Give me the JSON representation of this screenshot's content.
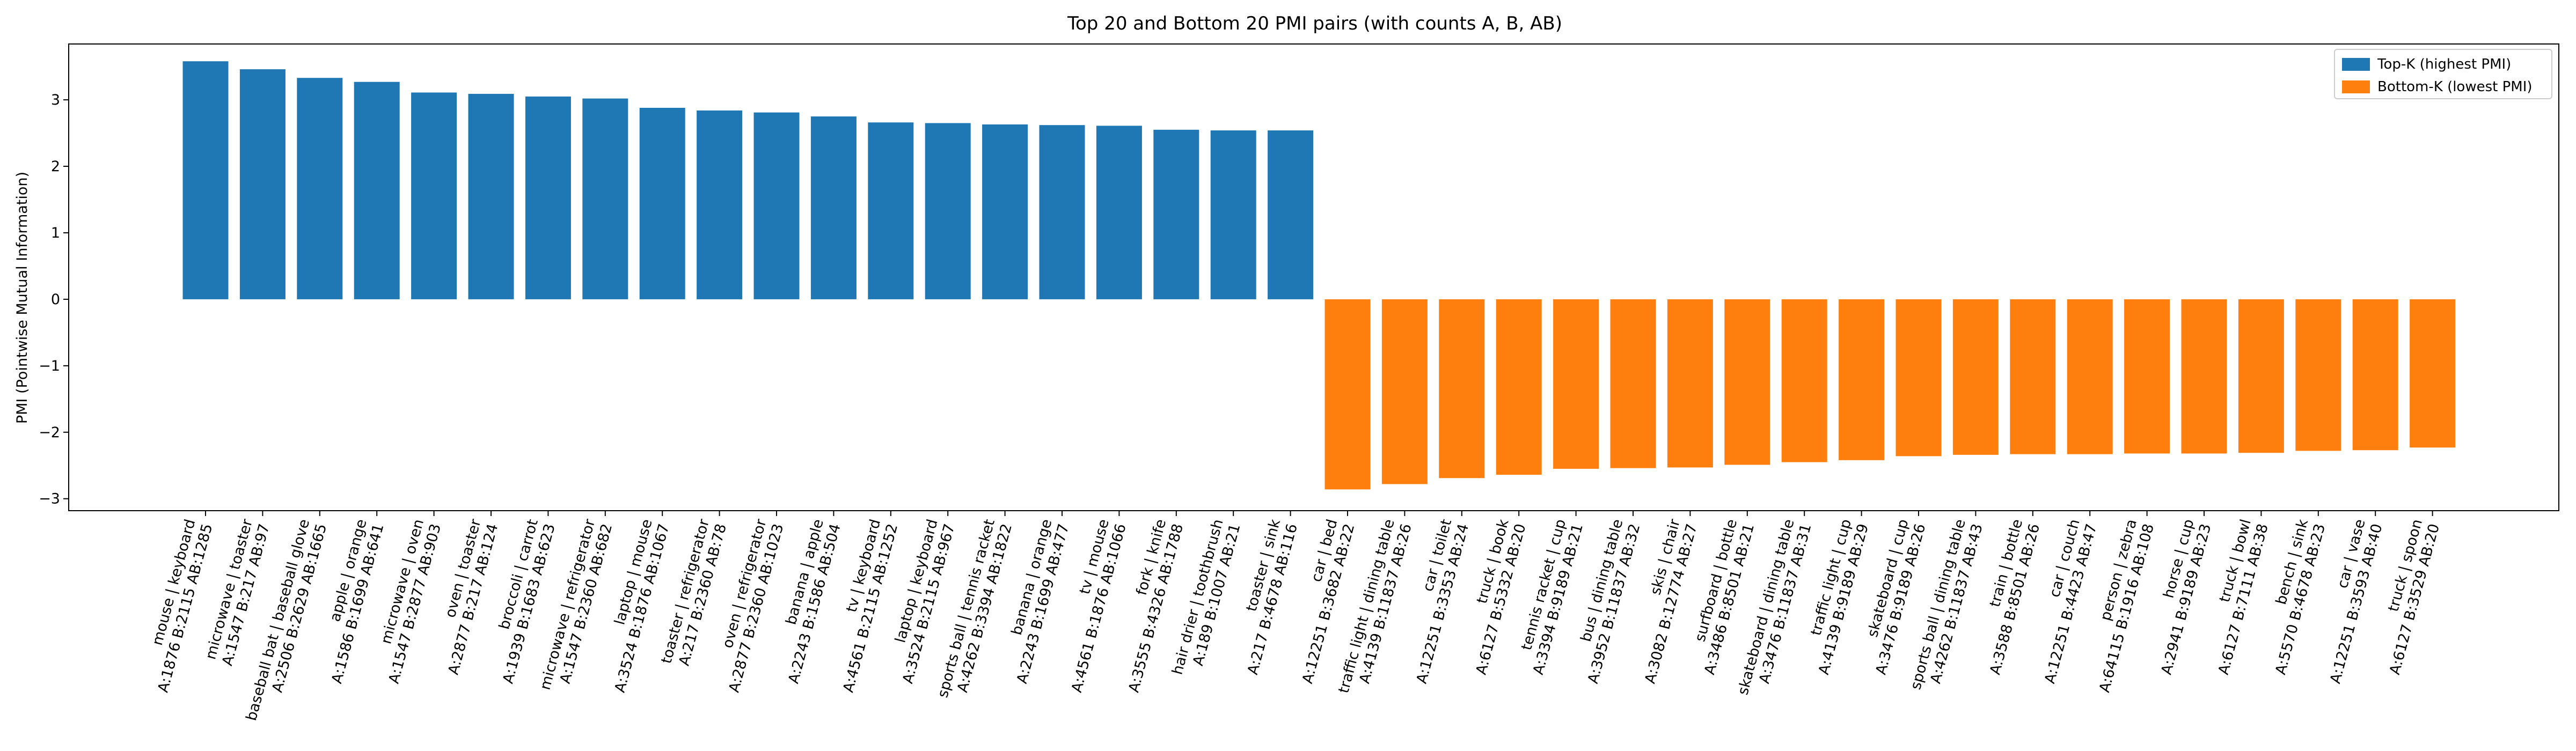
{
  "chart_data": {
    "type": "bar",
    "title": "Top 20 and Bottom 20 PMI pairs (with counts A, B, AB)",
    "xlabel": "",
    "ylabel": "PMI (Pointwise Mutual Information)",
    "ylim": [
      -3.18,
      3.84
    ],
    "yticks": [
      -3,
      -2,
      -1,
      0,
      1,
      2,
      3
    ],
    "grid": false,
    "legend_position": "top-right",
    "series": [
      {
        "name": "Top-K (highest PMI)",
        "color": "#1f77b4"
      },
      {
        "name": "Bottom-K (lowest PMI)",
        "color": "#ff7f0e"
      }
    ],
    "categories": [
      [
        "mouse | keyboard",
        "A:1876 B:2115 AB:1285"
      ],
      [
        "microwave | toaster",
        "A:1547 B:217 AB:97"
      ],
      [
        "baseball bat | baseball glove",
        "A:2506 B:2629 AB:1665"
      ],
      [
        "apple | orange",
        "A:1586 B:1699 AB:641"
      ],
      [
        "microwave | oven",
        "A:1547 B:2877 AB:903"
      ],
      [
        "oven | toaster",
        "A:2877 B:217 AB:124"
      ],
      [
        "broccoli | carrot",
        "A:1939 B:1683 AB:623"
      ],
      [
        "microwave | refrigerator",
        "A:1547 B:2360 AB:682"
      ],
      [
        "laptop | mouse",
        "A:3524 B:1876 AB:1067"
      ],
      [
        "toaster | refrigerator",
        "A:217 B:2360 AB:78"
      ],
      [
        "oven | refrigerator",
        "A:2877 B:2360 AB:1023"
      ],
      [
        "banana | apple",
        "A:2243 B:1586 AB:504"
      ],
      [
        "tv | keyboard",
        "A:4561 B:2115 AB:1252"
      ],
      [
        "laptop | keyboard",
        "A:3524 B:2115 AB:967"
      ],
      [
        "sports ball | tennis racket",
        "A:4262 B:3394 AB:1822"
      ],
      [
        "banana | orange",
        "A:2243 B:1699 AB:477"
      ],
      [
        "tv | mouse",
        "A:4561 B:1876 AB:1066"
      ],
      [
        "fork | knife",
        "A:3555 B:4326 AB:1788"
      ],
      [
        "hair drier | toothbrush",
        "A:189 B:1007 AB:21"
      ],
      [
        "toaster | sink",
        "A:217 B:4678 AB:116"
      ],
      [
        "car | bed",
        "A:12251 B:3682 AB:22"
      ],
      [
        "traffic light | dining table",
        "A:4139 B:11837 AB:26"
      ],
      [
        "car | toilet",
        "A:12251 B:3353 AB:24"
      ],
      [
        "truck | book",
        "A:6127 B:5332 AB:20"
      ],
      [
        "tennis racket | cup",
        "A:3394 B:9189 AB:21"
      ],
      [
        "bus | dining table",
        "A:3952 B:11837 AB:32"
      ],
      [
        "skis | chair",
        "A:3082 B:12774 AB:27"
      ],
      [
        "surfboard | bottle",
        "A:3486 B:8501 AB:21"
      ],
      [
        "skateboard | dining table",
        "A:3476 B:11837 AB:31"
      ],
      [
        "traffic light | cup",
        "A:4139 B:9189 AB:29"
      ],
      [
        "skateboard | cup",
        "A:3476 B:9189 AB:26"
      ],
      [
        "sports ball | dining table",
        "A:4262 B:11837 AB:43"
      ],
      [
        "train | bottle",
        "A:3588 B:8501 AB:26"
      ],
      [
        "car | couch",
        "A:12251 B:4423 AB:47"
      ],
      [
        "person | zebra",
        "A:64115 B:1916 AB:108"
      ],
      [
        "horse | cup",
        "A:2941 B:9189 AB:23"
      ],
      [
        "truck | bowl",
        "A:6127 B:7111 AB:38"
      ],
      [
        "bench | sink",
        "A:5570 B:4678 AB:23"
      ],
      [
        "car | vase",
        "A:12251 B:3593 AB:40"
      ],
      [
        "truck | spoon",
        "A:6127 B:3529 AB:20"
      ]
    ],
    "values": [
      3.58,
      3.46,
      3.33,
      3.27,
      3.11,
      3.09,
      3.05,
      3.02,
      2.88,
      2.84,
      2.81,
      2.75,
      2.66,
      2.65,
      2.63,
      2.62,
      2.61,
      2.55,
      2.54,
      2.54,
      -2.86,
      -2.78,
      -2.69,
      -2.64,
      -2.55,
      -2.54,
      -2.53,
      -2.49,
      -2.45,
      -2.42,
      -2.36,
      -2.34,
      -2.33,
      -2.33,
      -2.32,
      -2.32,
      -2.31,
      -2.28,
      -2.27,
      -2.23
    ],
    "series_index": [
      0,
      0,
      0,
      0,
      0,
      0,
      0,
      0,
      0,
      0,
      0,
      0,
      0,
      0,
      0,
      0,
      0,
      0,
      0,
      0,
      1,
      1,
      1,
      1,
      1,
      1,
      1,
      1,
      1,
      1,
      1,
      1,
      1,
      1,
      1,
      1,
      1,
      1,
      1,
      1
    ]
  }
}
